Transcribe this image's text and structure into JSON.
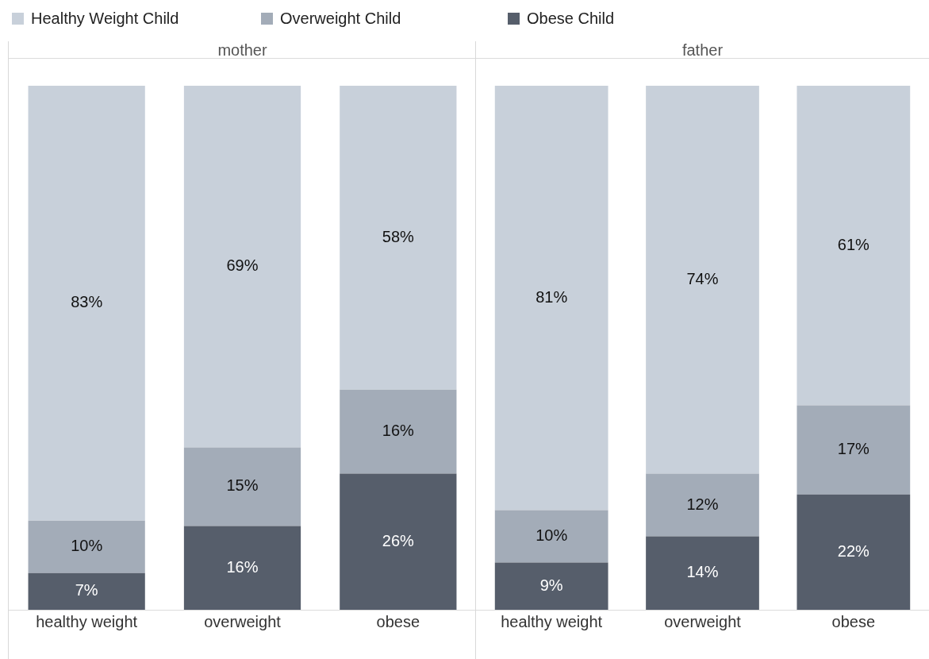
{
  "chart_data": [
    {
      "type": "bar",
      "title": "mother",
      "categories": [
        "healthy weight",
        "overweight",
        "obese"
      ],
      "stacked": true,
      "legend": "top",
      "tick_labels": "x",
      "grid": false,
      "series": [
        {
          "name": "Obese Child",
          "color": "#565e6b",
          "values": [
            7,
            16,
            26
          ],
          "value_labels": [
            "7%",
            "16%",
            "26%"
          ]
        },
        {
          "name": "Overweight Child",
          "color": "#a3acb8",
          "values": [
            10,
            15,
            16
          ],
          "value_labels": [
            "10%",
            "15%",
            "16%"
          ]
        },
        {
          "name": "Healthy Weight Child",
          "color": "#c8d0da",
          "values": [
            83,
            69,
            58
          ],
          "value_labels": [
            "83%",
            "69%",
            "58%"
          ]
        }
      ]
    },
    {
      "type": "bar",
      "title": "father",
      "categories": [
        "healthy weight",
        "overweight",
        "obese"
      ],
      "stacked": true,
      "tick_labels": "x",
      "grid": false,
      "series": [
        {
          "color": "#565e6b",
          "values": [
            9,
            14,
            22
          ],
          "value_labels": [
            "9%",
            "14%",
            "22%"
          ]
        },
        {
          "color": "#a3acb8",
          "values": [
            10,
            12,
            17
          ],
          "value_labels": [
            "10%",
            "12%",
            "17%"
          ]
        },
        {
          "color": "#c8d0da",
          "values": [
            81,
            74,
            61
          ],
          "value_labels": [
            "81%",
            "74%",
            "61%"
          ]
        }
      ]
    }
  ]
}
